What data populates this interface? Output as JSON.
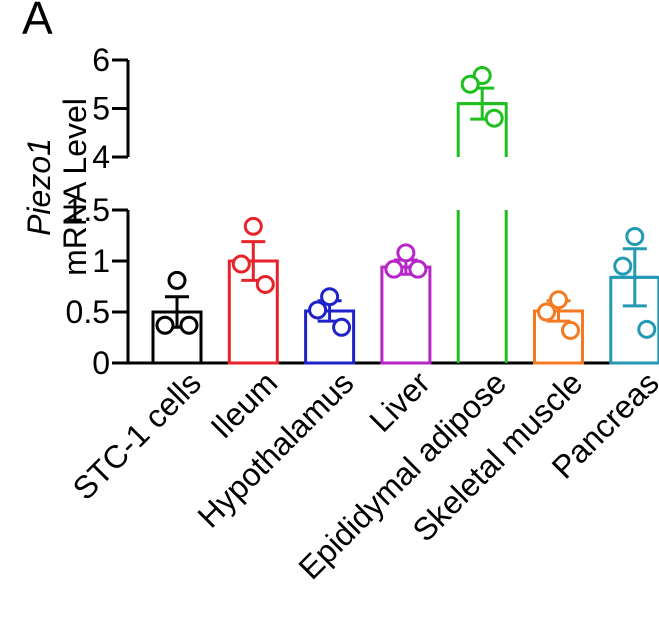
{
  "panel_label": "A",
  "chart_data": {
    "type": "bar",
    "ylabel_italic": "Piezo1",
    "ylabel": "mRNA Level",
    "y_axis_break": true,
    "lower_segment": {
      "ylim": [
        0,
        1.5
      ],
      "ticks": [
        "0",
        "0.5",
        "1",
        "1.5"
      ]
    },
    "upper_segment": {
      "ylim": [
        4,
        6
      ],
      "ticks": [
        "4",
        "5",
        "6"
      ]
    },
    "categories": [
      "STC-1 cells",
      "Ileum",
      "Hypothalamus",
      "Liver",
      "Epididymal adipose",
      "Skeletal muscle",
      "Pancreas"
    ],
    "values": [
      0.5,
      1.0,
      0.51,
      0.94,
      5.1,
      0.51,
      0.84
    ],
    "sem": [
      0.15,
      0.19,
      0.1,
      0.07,
      0.32,
      0.1,
      0.28
    ],
    "points": [
      [
        0.81,
        0.37,
        0.37
      ],
      [
        1.34,
        0.97,
        0.77
      ],
      [
        0.65,
        0.52,
        0.35
      ],
      [
        1.08,
        0.92,
        0.92
      ],
      [
        5.68,
        5.5,
        4.8
      ],
      [
        0.62,
        0.5,
        0.32
      ],
      [
        1.24,
        0.95,
        0.33
      ]
    ],
    "colors": [
      "#000000",
      "#e8242b",
      "#1e22c8",
      "#b626c9",
      "#1fbf1f",
      "#f47a22",
      "#2399b3"
    ],
    "grid": false,
    "legend": "none"
  }
}
